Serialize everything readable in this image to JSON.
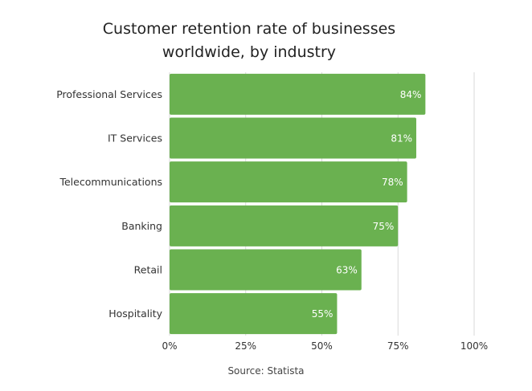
{
  "title_lines": [
    "Customer retention rate of businesses",
    "worldwide, by industry"
  ],
  "source": "Source: Statista",
  "colors": {
    "bar": "#6ab150",
    "bar_label": "#ffffff",
    "grid": "#d9d9d9"
  },
  "chart_data": {
    "type": "bar",
    "orientation": "horizontal",
    "title": "Customer retention rate of businesses worldwide, by industry",
    "xlabel": "",
    "ylabel": "",
    "categories": [
      "Professional Services",
      "IT Services",
      "Telecommunications",
      "Banking",
      "Retail",
      "Hospitality"
    ],
    "values": [
      84,
      81,
      78,
      75,
      63,
      55
    ],
    "value_labels": [
      "84%",
      "81%",
      "78%",
      "75%",
      "63%",
      "55%"
    ],
    "xlim": [
      0,
      100
    ],
    "ticks": [
      0,
      25,
      50,
      75,
      100
    ],
    "tick_labels": [
      "0%",
      "25%",
      "50%",
      "75%",
      "100%"
    ],
    "grid": true,
    "legend": "none"
  }
}
